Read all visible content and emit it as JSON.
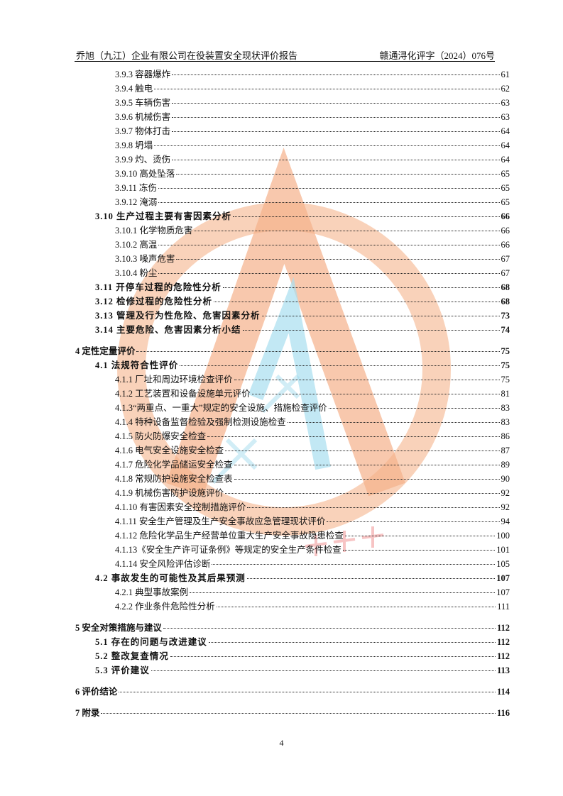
{
  "header": {
    "left": "乔旭（九江）企业有限公司在役装置安全现状评价报告",
    "right": "赣通浔化评字（2024）076号"
  },
  "toc": [
    {
      "level": 3,
      "title": "3.9.3 容器爆炸",
      "page": "61"
    },
    {
      "level": 3,
      "title": "3.9.4 触电",
      "page": "62"
    },
    {
      "level": 3,
      "title": "3.9.5 车辆伤害",
      "page": "63"
    },
    {
      "level": 3,
      "title": "3.9.6 机械伤害",
      "page": "63"
    },
    {
      "level": 3,
      "title": "3.9.7 物体打击",
      "page": "64"
    },
    {
      "level": 3,
      "title": "3.9.8 坍塌",
      "page": "64"
    },
    {
      "level": 3,
      "title": "3.9.9 灼、烫伤",
      "page": "64"
    },
    {
      "level": 3,
      "title": "3.9.10 高处坠落",
      "page": "65"
    },
    {
      "level": 3,
      "title": "3.9.11 冻伤",
      "page": "65"
    },
    {
      "level": 3,
      "title": "3.9.12 淹溺",
      "page": "65"
    },
    {
      "level": 2,
      "title": "3.10 生产过程主要有害因素分析",
      "page": "66"
    },
    {
      "level": 3,
      "title": "3.10.1 化学物质危害",
      "page": "66"
    },
    {
      "level": 3,
      "title": "3.10.2 高温",
      "page": "66"
    },
    {
      "level": 3,
      "title": "3.10.3 噪声危害",
      "page": "67"
    },
    {
      "level": 3,
      "title": "3.10.4 粉尘",
      "page": "67"
    },
    {
      "level": 2,
      "title": "3.11 开停车过程的危险性分析",
      "page": "68"
    },
    {
      "level": 2,
      "title": "3.12 检修过程的危险性分析",
      "page": "68"
    },
    {
      "level": 2,
      "title": "3.13 管理及行为性危险、危害因素分析",
      "page": "73"
    },
    {
      "level": 2,
      "title": "3.14 主要危险、危害因素分析小结",
      "page": "74"
    },
    {
      "level": 1,
      "title": "4 定性定量评价",
      "page": "75"
    },
    {
      "level": 2,
      "title": "4.1 法规符合性评价",
      "page": "75"
    },
    {
      "level": 3,
      "title": "4.1.1 厂址和周边环境检查评价",
      "page": "75"
    },
    {
      "level": 3,
      "title": "4.1.2 工艺装置和设备设施单元评价",
      "page": "81"
    },
    {
      "level": 3,
      "title": "4.1.3“两重点、一重大”规定的安全设施、措施检查评价",
      "page": "83"
    },
    {
      "level": 3,
      "title": "4.1.4 特种设备监督检验及强制检测设施检查",
      "page": "83"
    },
    {
      "level": 3,
      "title": "4.1.5 防火防爆安全检查",
      "page": "86"
    },
    {
      "level": 3,
      "title": "4.1.6 电气安全设施安全检查",
      "page": "87"
    },
    {
      "level": 3,
      "title": "4.1.7 危险化学品储运安全检查",
      "page": "89"
    },
    {
      "level": 3,
      "title": "4.1.8 常规防护设施安全检查表",
      "page": "90"
    },
    {
      "level": 3,
      "title": "4.1.9 机械伤害防护设施评价",
      "page": "92"
    },
    {
      "level": 3,
      "title": "4.1.10 有害因素安全控制措施评价",
      "page": "92"
    },
    {
      "level": 3,
      "title": "4.1.11 安全生产管理及生产安全事故应急管理现状评价",
      "page": "94"
    },
    {
      "level": 3,
      "title": "4.1.12 危险化学品生产经营单位重大生产安全事故隐患检查",
      "page": "100"
    },
    {
      "level": 3,
      "title": "4.1.13《安全生产许可证条例》等规定的安全生产条件检查",
      "page": "101"
    },
    {
      "level": 3,
      "title": "4.1.14 安全风险评估诊断",
      "page": "105"
    },
    {
      "level": 2,
      "title": "4.2 事故发生的可能性及其后果预测",
      "page": "107"
    },
    {
      "level": 3,
      "title": "4.2.1 典型事故案例",
      "page": "107"
    },
    {
      "level": 3,
      "title": "4.2.2 作业条件危险性分析",
      "page": "111"
    },
    {
      "level": 1,
      "title": "5 安全对策措施与建议",
      "page": "112"
    },
    {
      "level": 2,
      "title": "5.1 存在的问题与改进建议",
      "page": "112"
    },
    {
      "level": 2,
      "title": "5.2 整改复查情况",
      "page": "112"
    },
    {
      "level": 2,
      "title": "5.3 评价建议",
      "page": "113"
    },
    {
      "level": 1,
      "title": "6 评价结论",
      "page": "114"
    },
    {
      "level": 1,
      "title": "7 附录",
      "page": "116"
    }
  ],
  "footer": {
    "page_number": "4"
  },
  "watermark": {
    "colors": {
      "orange": "#f5b08a",
      "blue": "#8fd3ec",
      "red": "#f08a8a"
    }
  }
}
